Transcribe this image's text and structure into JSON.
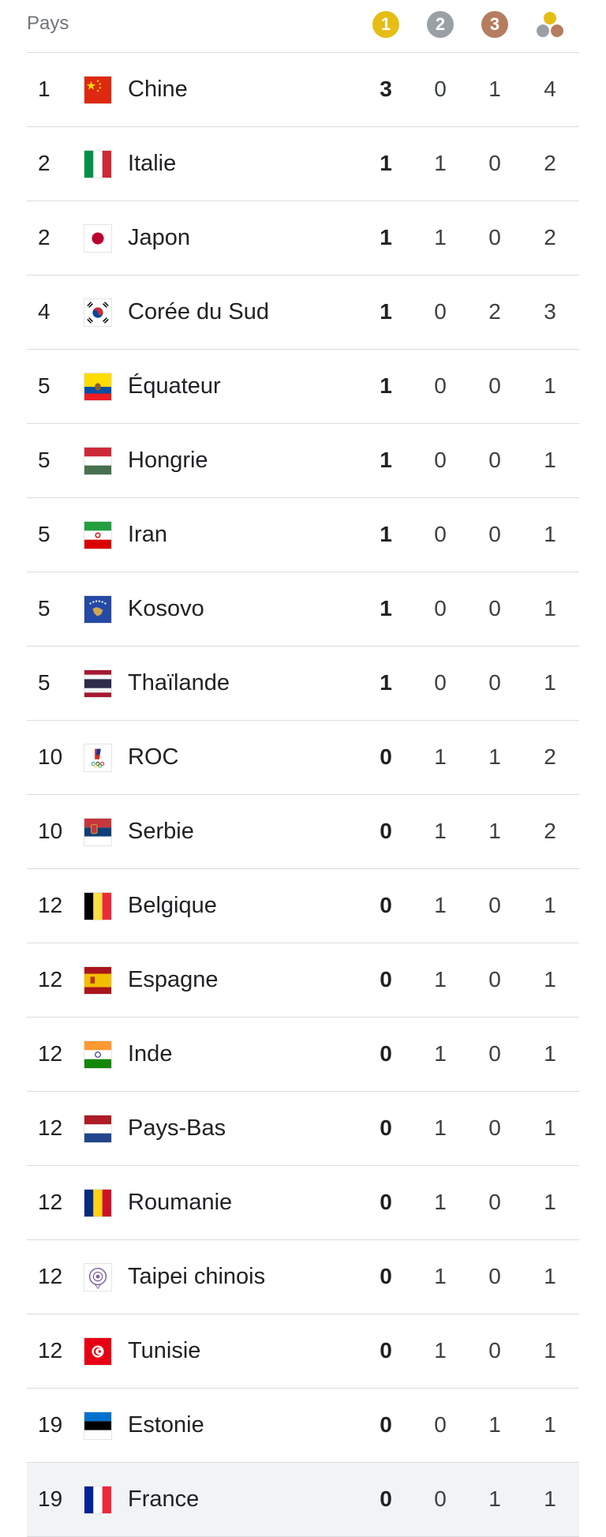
{
  "header": {
    "country_label": "Pays",
    "gold_label": "1",
    "silver_label": "2",
    "bronze_label": "3"
  },
  "colors": {
    "gold": "#e6bd15",
    "silver": "#9aa0a6",
    "bronze": "#b57d5e",
    "divider": "#dadce0"
  },
  "rows": [
    {
      "rank": "1",
      "country": "Chine",
      "flag": "china-flag-icon",
      "gold": "3",
      "silver": "0",
      "bronze": "1",
      "total": "4"
    },
    {
      "rank": "2",
      "country": "Italie",
      "flag": "italy-flag-icon",
      "gold": "1",
      "silver": "1",
      "bronze": "0",
      "total": "2"
    },
    {
      "rank": "2",
      "country": "Japon",
      "flag": "japan-flag-icon",
      "gold": "1",
      "silver": "1",
      "bronze": "0",
      "total": "2"
    },
    {
      "rank": "4",
      "country": "Corée du Sud",
      "flag": "south-korea-flag-icon",
      "gold": "1",
      "silver": "0",
      "bronze": "2",
      "total": "3"
    },
    {
      "rank": "5",
      "country": "Équateur",
      "flag": "ecuador-flag-icon",
      "gold": "1",
      "silver": "0",
      "bronze": "0",
      "total": "1"
    },
    {
      "rank": "5",
      "country": "Hongrie",
      "flag": "hungary-flag-icon",
      "gold": "1",
      "silver": "0",
      "bronze": "0",
      "total": "1"
    },
    {
      "rank": "5",
      "country": "Iran",
      "flag": "iran-flag-icon",
      "gold": "1",
      "silver": "0",
      "bronze": "0",
      "total": "1"
    },
    {
      "rank": "5",
      "country": "Kosovo",
      "flag": "kosovo-flag-icon",
      "gold": "1",
      "silver": "0",
      "bronze": "0",
      "total": "1"
    },
    {
      "rank": "5",
      "country": "Thaïlande",
      "flag": "thailand-flag-icon",
      "gold": "1",
      "silver": "0",
      "bronze": "0",
      "total": "1"
    },
    {
      "rank": "10",
      "country": "ROC",
      "flag": "roc-flag-icon",
      "gold": "0",
      "silver": "1",
      "bronze": "1",
      "total": "2"
    },
    {
      "rank": "10",
      "country": "Serbie",
      "flag": "serbia-flag-icon",
      "gold": "0",
      "silver": "1",
      "bronze": "1",
      "total": "2"
    },
    {
      "rank": "12",
      "country": "Belgique",
      "flag": "belgium-flag-icon",
      "gold": "0",
      "silver": "1",
      "bronze": "0",
      "total": "1"
    },
    {
      "rank": "12",
      "country": "Espagne",
      "flag": "spain-flag-icon",
      "gold": "0",
      "silver": "1",
      "bronze": "0",
      "total": "1"
    },
    {
      "rank": "12",
      "country": "Inde",
      "flag": "india-flag-icon",
      "gold": "0",
      "silver": "1",
      "bronze": "0",
      "total": "1"
    },
    {
      "rank": "12",
      "country": "Pays-Bas",
      "flag": "netherlands-flag-icon",
      "gold": "0",
      "silver": "1",
      "bronze": "0",
      "total": "1"
    },
    {
      "rank": "12",
      "country": "Roumanie",
      "flag": "romania-flag-icon",
      "gold": "0",
      "silver": "1",
      "bronze": "0",
      "total": "1"
    },
    {
      "rank": "12",
      "country": "Taipei chinois",
      "flag": "chinese-taipei-flag-icon",
      "gold": "0",
      "silver": "1",
      "bronze": "0",
      "total": "1"
    },
    {
      "rank": "12",
      "country": "Tunisie",
      "flag": "tunisia-flag-icon",
      "gold": "0",
      "silver": "1",
      "bronze": "0",
      "total": "1"
    },
    {
      "rank": "19",
      "country": "Estonie",
      "flag": "estonia-flag-icon",
      "gold": "0",
      "silver": "0",
      "bronze": "1",
      "total": "1"
    },
    {
      "rank": "19",
      "country": "France",
      "flag": "france-flag-icon",
      "gold": "0",
      "silver": "0",
      "bronze": "1",
      "total": "1"
    }
  ]
}
